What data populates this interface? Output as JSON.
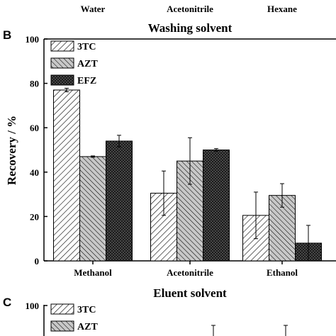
{
  "top_categories": [
    "Water",
    "Acetonitrile",
    "Hexane"
  ],
  "panel_b": {
    "letter": "B",
    "title": "Washing solvent"
  },
  "panel_c": {
    "letter": "C",
    "title": "Eluent solvent",
    "ytick_top": "100",
    "legend": [
      "3TC",
      "AZT"
    ]
  },
  "chart_data": {
    "type": "bar",
    "title": "Washing solvent",
    "ylabel": "Recovery / %",
    "xlabel": "",
    "ylim": [
      0,
      100
    ],
    "yticks": [
      0,
      20,
      40,
      60,
      80,
      100
    ],
    "categories": [
      "Methanol",
      "Acetonitrile",
      "Ethanol"
    ],
    "legend_position": "top-left",
    "series": [
      {
        "name": "3TC",
        "pattern": "diagonal-right",
        "fill": "#ffffff",
        "values": [
          77,
          30.5,
          20.5
        ],
        "errors": [
          0.8,
          10,
          10.5
        ]
      },
      {
        "name": "AZT",
        "pattern": "diagonal-left",
        "fill": "#c8c8c8",
        "values": [
          47,
          45,
          29.5
        ],
        "errors": [
          0.3,
          10.5,
          5.3
        ]
      },
      {
        "name": "EFZ",
        "pattern": "crosshatch",
        "fill": "#555555",
        "values": [
          54,
          50,
          8
        ],
        "errors": [
          2.6,
          0.6,
          8
        ]
      }
    ]
  }
}
